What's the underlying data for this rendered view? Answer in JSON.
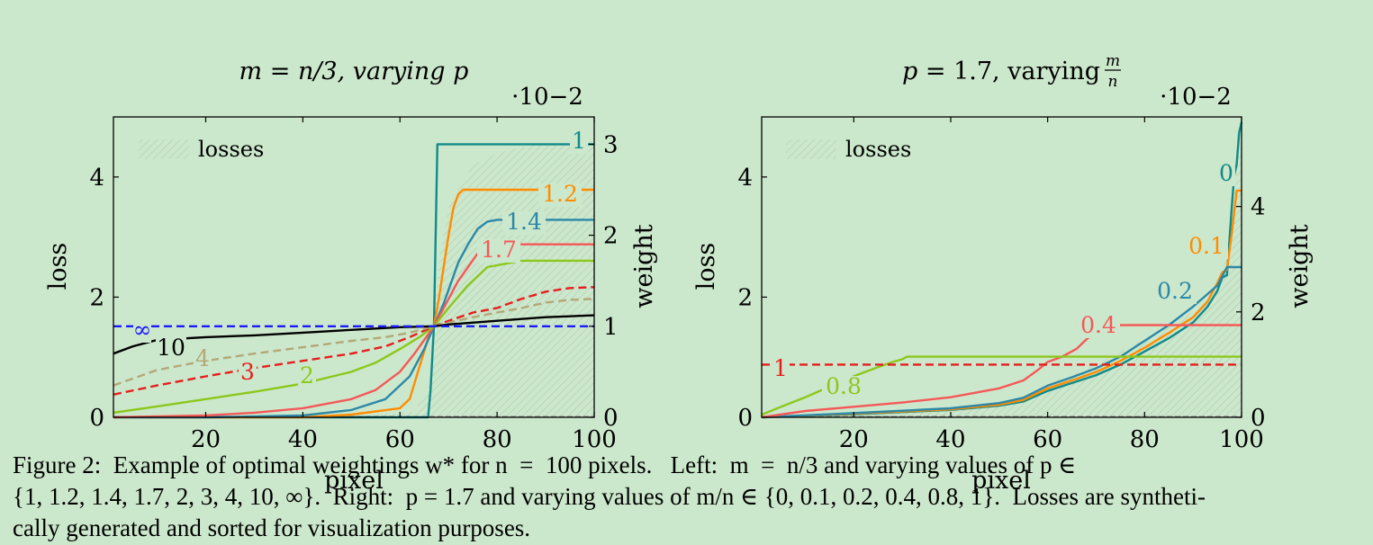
{
  "chart_data": [
    {
      "type": "line",
      "title": "m = n/3, varying p",
      "xlabel": "pixel",
      "ylabel": "loss",
      "y2label": "weight",
      "y2_multiplier": "·10−2",
      "xlim": [
        1,
        100
      ],
      "ylim": [
        0,
        5
      ],
      "y2lim": [
        0,
        3.3
      ],
      "xticks": [
        "20",
        "40",
        "60",
        "80",
        "100"
      ],
      "yticks": [
        "0",
        "2",
        "4"
      ],
      "y2ticks": [
        "0",
        "1",
        "2",
        "3"
      ],
      "legend": {
        "label": "losses",
        "placement": "top-left"
      },
      "losses": {
        "x": [
          1,
          10,
          20,
          30,
          40,
          50,
          55,
          60,
          63,
          66,
          67,
          68,
          70,
          75,
          80,
          85,
          90,
          95,
          100
        ],
        "y": [
          0,
          0.01,
          0.01,
          0.02,
          0.03,
          0.04,
          0.05,
          0.07,
          0.1,
          0.5,
          1.5,
          2.6,
          3.5,
          4.2,
          4.4,
          4.5,
          4.55,
          4.57,
          4.6
        ]
      },
      "series": [
        {
          "name": "1",
          "color": "#108a8a",
          "dashed": false,
          "x": [
            1,
            65.8,
            66.3,
            67,
            67.7,
            100
          ],
          "y": [
            0,
            0,
            0.3,
            1.0,
            3.0,
            3.0
          ]
        },
        {
          "name": "1.2",
          "color": "#ff8c00",
          "dashed": false,
          "x": [
            1,
            40,
            50,
            60,
            62,
            64,
            66,
            67,
            68,
            70,
            71,
            72,
            73,
            74,
            100
          ],
          "y": [
            0,
            0,
            0.03,
            0.1,
            0.2,
            0.55,
            0.9,
            1.0,
            1.3,
            2.0,
            2.3,
            2.45,
            2.5,
            2.5,
            2.5
          ]
        },
        {
          "name": "1.4",
          "color": "#2c88a8",
          "dashed": false,
          "x": [
            1,
            20,
            40,
            50,
            57,
            62,
            65,
            67,
            69,
            70,
            72,
            74,
            76,
            78,
            80,
            100
          ],
          "y": [
            0,
            0,
            0.02,
            0.08,
            0.2,
            0.45,
            0.75,
            1.0,
            1.25,
            1.4,
            1.7,
            1.9,
            2.07,
            2.15,
            2.17,
            2.17
          ]
        },
        {
          "name": "1.7",
          "color": "#f55858",
          "dashed": false,
          "x": [
            1,
            20,
            30,
            40,
            50,
            55,
            60,
            63,
            67,
            70,
            72,
            74,
            76,
            78,
            80,
            100
          ],
          "y": [
            0,
            0.02,
            0.05,
            0.1,
            0.2,
            0.3,
            0.5,
            0.7,
            1.0,
            1.3,
            1.5,
            1.65,
            1.8,
            1.88,
            1.9,
            1.9
          ]
        },
        {
          "name": "2",
          "color": "#8cc71c",
          "dashed": false,
          "x": [
            1,
            10,
            20,
            30,
            40,
            50,
            55,
            60,
            64,
            67,
            70,
            74,
            78,
            85,
            100
          ],
          "y": [
            0.05,
            0.12,
            0.2,
            0.28,
            0.37,
            0.5,
            0.6,
            0.75,
            0.88,
            1.0,
            1.2,
            1.45,
            1.65,
            1.72,
            1.72
          ]
        },
        {
          "name": "3",
          "color": "#e61e1e",
          "dashed": true,
          "x": [
            1,
            10,
            20,
            30,
            40,
            50,
            57,
            62,
            67,
            70,
            75,
            80,
            85,
            90,
            95,
            100
          ],
          "y": [
            0.25,
            0.35,
            0.45,
            0.54,
            0.62,
            0.7,
            0.78,
            0.88,
            1.0,
            1.06,
            1.15,
            1.2,
            1.3,
            1.38,
            1.42,
            1.43
          ]
        },
        {
          "name": "4",
          "color": "#b3a878",
          "dashed": true,
          "x": [
            1,
            10,
            20,
            30,
            40,
            50,
            57,
            62,
            67,
            70,
            75,
            80,
            85,
            90,
            95,
            100
          ],
          "y": [
            0.35,
            0.52,
            0.62,
            0.7,
            0.77,
            0.84,
            0.88,
            0.93,
            1.0,
            1.04,
            1.1,
            1.15,
            1.2,
            1.26,
            1.29,
            1.3
          ]
        },
        {
          "name": "10",
          "color": "#000000",
          "dashed": false,
          "x": [
            1,
            5,
            10,
            20,
            30,
            40,
            50,
            60,
            67,
            70,
            80,
            90,
            100
          ],
          "y": [
            0.7,
            0.78,
            0.85,
            0.88,
            0.9,
            0.93,
            0.96,
            0.99,
            1.0,
            1.02,
            1.06,
            1.1,
            1.12
          ]
        },
        {
          "name": "∞",
          "color": "#1a1aff",
          "dashed": true,
          "x": [
            1,
            100
          ],
          "y": [
            1.0,
            1.0
          ]
        }
      ]
    },
    {
      "type": "line",
      "title": "p = 1.7, varying m/n",
      "xlabel": "pixel",
      "ylabel": "loss",
      "y2label": "weight",
      "y2_multiplier": "·10−2",
      "xlim": [
        1,
        100
      ],
      "ylim": [
        0,
        5
      ],
      "y2lim": [
        0,
        5.7
      ],
      "xticks": [
        "20",
        "40",
        "60",
        "80",
        "100"
      ],
      "yticks": [
        "0",
        "2",
        "4"
      ],
      "y2ticks": [
        "0",
        "2",
        "4"
      ],
      "legend": {
        "label": "losses",
        "placement": "top-left"
      },
      "losses": {
        "x": [
          1,
          20,
          40,
          50,
          60,
          70,
          80,
          85,
          90,
          95,
          97,
          98,
          99,
          100
        ],
        "y": [
          0,
          0.05,
          0.12,
          0.2,
          0.5,
          0.9,
          1.3,
          1.55,
          1.75,
          2.1,
          2.8,
          3.5,
          4.1,
          4.6
        ]
      },
      "series": [
        {
          "name": "0",
          "color": "#108a8a",
          "dashed": false,
          "x": [
            1,
            20,
            40,
            50,
            55,
            60,
            65,
            70,
            75,
            80,
            85,
            90,
            93,
            95,
            96,
            97,
            98,
            98.5,
            99,
            99.5,
            100
          ],
          "y": [
            0,
            0.06,
            0.14,
            0.22,
            0.3,
            0.5,
            0.65,
            0.8,
            1.0,
            1.25,
            1.5,
            1.8,
            2.1,
            2.4,
            2.65,
            2.7,
            4.0,
            4.6,
            4.8,
            5.4,
            5.6
          ]
        },
        {
          "name": "0.1",
          "color": "#ff8c00",
          "dashed": false,
          "x": [
            1,
            20,
            40,
            50,
            55,
            60,
            65,
            70,
            75,
            80,
            85,
            90,
            93,
            95,
            96,
            97,
            98,
            99,
            100
          ],
          "y": [
            0,
            0.07,
            0.15,
            0.24,
            0.33,
            0.55,
            0.7,
            0.86,
            1.07,
            1.32,
            1.6,
            1.9,
            2.2,
            2.55,
            2.75,
            2.8,
            3.5,
            4.3,
            4.3
          ]
        },
        {
          "name": "0.2",
          "color": "#2c88a8",
          "dashed": false,
          "x": [
            1,
            20,
            40,
            50,
            55,
            60,
            65,
            70,
            75,
            80,
            85,
            90,
            95,
            97,
            100
          ],
          "y": [
            0,
            0.08,
            0.17,
            0.27,
            0.37,
            0.6,
            0.76,
            0.93,
            1.15,
            1.45,
            1.75,
            2.1,
            2.5,
            2.85,
            2.85
          ]
        },
        {
          "name": "0.4",
          "color": "#f55858",
          "dashed": false,
          "x": [
            1,
            10,
            20,
            30,
            40,
            50,
            55,
            58,
            60,
            63,
            66,
            68,
            69
          ],
          "y": [
            0,
            0.12,
            0.2,
            0.28,
            0.38,
            0.55,
            0.7,
            0.9,
            1.05,
            1.15,
            1.3,
            1.48,
            1.55
          ]
        },
        {
          "name": "0.4",
          "color": "#f55858",
          "dashed": false,
          "x": [
            66,
            100
          ],
          "y": [
            1.75,
            1.75
          ]
        },
        {
          "name": "0.8",
          "color": "#8cc71c",
          "dashed": false,
          "x": [
            1,
            5,
            10,
            15,
            20,
            25,
            28,
            30,
            31,
            100
          ],
          "y": [
            0.05,
            0.2,
            0.38,
            0.58,
            0.78,
            0.95,
            1.05,
            1.1,
            1.15,
            1.15
          ]
        },
        {
          "name": "1",
          "color": "#e61e1e",
          "dashed": true,
          "x": [
            1,
            100
          ],
          "y": [
            1.0,
            1.0
          ]
        }
      ]
    }
  ],
  "caption": {
    "line1": "Figure 2:  Example of optimal weightings w* for n  =  100 pixels.   Left:  m  =  n/3 and varying values of p ∈",
    "line2": "{1, 1.2, 1.4, 1.7, 2, 3, 4, 10, ∞}.  Right:  p = 1.7 and varying values of m/n ∈ {0, 0.1, 0.2, 0.4, 0.8, 1}.  Losses are syntheti-",
    "line3": "cally generated and sorted for visualization purposes."
  }
}
